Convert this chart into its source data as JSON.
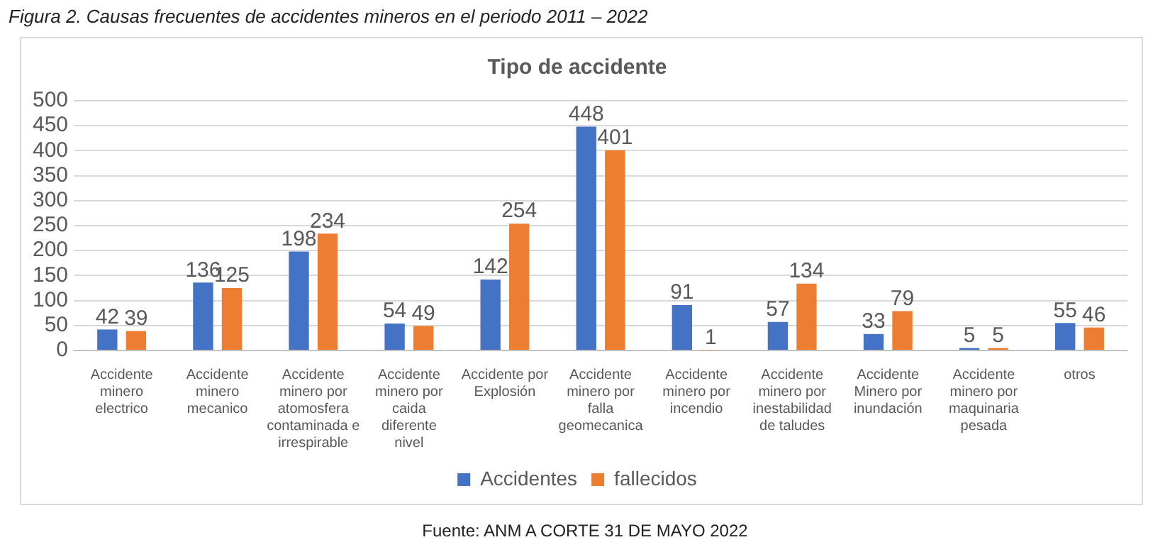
{
  "chart_data": {
    "type": "bar",
    "title": "Tipo de accidente",
    "categories": [
      "Accidente minero electrico",
      "Accidente minero mecanico",
      "Accidente minero por atomosfera contaminada e irrespirable",
      "Accidente minero por caida diferente nivel",
      "Accidente por Explosión",
      "Accidente minero por falla geomecanica",
      "Accidente minero por incendio",
      "Accidente minero por inestabilidad de taludes",
      "Accidente Minero por inundación",
      "Accidente minero por maquinaria pesada",
      "otros"
    ],
    "series": [
      {
        "name": "Accidentes",
        "color": "#4472c4",
        "values": [
          42,
          136,
          198,
          54,
          142,
          448,
          91,
          57,
          33,
          5,
          55
        ]
      },
      {
        "name": "fallecidos",
        "color": "#ed7d31",
        "values": [
          39,
          125,
          234,
          49,
          254,
          401,
          1,
          134,
          79,
          5,
          46
        ]
      }
    ],
    "ylim": [
      0,
      500
    ],
    "yticks": [
      0,
      50,
      100,
      150,
      200,
      250,
      300,
      350,
      400,
      450,
      500
    ],
    "grid": "y",
    "legend": "bottom",
    "data_labels": true,
    "annotations": [
      "Figura  2. Causas frecuentes de accidentes mineros en el periodo 2011 – 2022",
      "Fuente: ANM A CORTE 31 DE MAYO 2022"
    ]
  }
}
